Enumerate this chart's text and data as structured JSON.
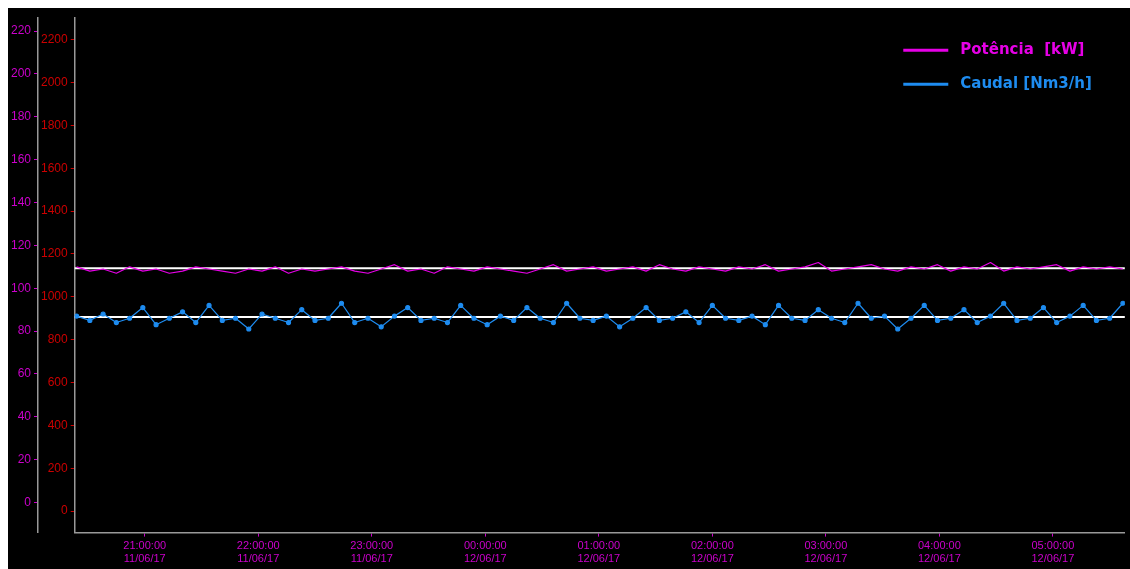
{
  "chart_data": {
    "type": "line",
    "x": [
      "--06-11T20:24",
      "--06-11T20:31",
      "--06-11T20:38",
      "--06-11T20:45",
      "--06-11T20:52",
      "--06-11T20:59",
      "--06-11T21:06",
      "--06-11T21:13",
      "--06-11T21:20",
      "--06-11T21:27",
      "--06-11T21:34",
      "--06-11T21:41",
      "--06-11T21:48",
      "--06-11T21:55",
      "--06-11T22:02",
      "--06-11T22:09",
      "--06-11T22:16",
      "--06-11T22:23",
      "--06-11T22:30",
      "--06-11T22:37",
      "--06-11T22:44",
      "--06-11T22:51",
      "--06-11T22:58",
      "--06-11T23:05",
      "--06-11T23:12",
      "--06-11T23:19",
      "--06-11T23:26",
      "--06-11T23:33",
      "--06-11T23:40",
      "--06-11T23:47",
      "--06-11T23:54",
      "--06-12T00:01",
      "--06-12T00:08",
      "--06-12T00:15",
      "--06-12T00:22",
      "--06-12T00:29",
      "--06-12T00:36",
      "--06-12T00:43",
      "--06-12T00:50",
      "--06-12T00:57",
      "--06-12T01:04",
      "--06-12T01:11",
      "--06-12T01:18",
      "--06-12T01:25",
      "--06-12T01:32",
      "--06-12T01:39",
      "--06-12T01:46",
      "--06-12T01:53",
      "--06-12T02:00",
      "--06-12T02:07",
      "--06-12T02:14",
      "--06-12T02:21",
      "--06-12T02:28",
      "--06-12T02:35",
      "--06-12T02:42",
      "--06-12T02:49",
      "--06-12T02:56",
      "--06-12T03:03",
      "--06-12T03:10",
      "--06-12T03:17",
      "--06-12T03:24",
      "--06-12T03:31",
      "--06-12T03:38",
      "--06-12T03:45",
      "--06-12T03:52",
      "--06-12T03:59",
      "--06-12T04:06",
      "--06-12T04:13",
      "--06-12T04:20",
      "--06-12T04:27",
      "--06-12T04:34",
      "--06-12T04:41",
      "--06-12T04:48",
      "--06-12T04:55",
      "--06-12T05:02",
      "--06-12T05:09",
      "--06-12T05:16",
      "--06-12T05:23",
      "--06-12T05:30",
      "--06-12T05:37"
    ],
    "series": [
      {
        "name": "Potência  [kW]",
        "color": "#e600e6",
        "marker": "none",
        "values": [
          110,
          108,
          109,
          107,
          110,
          108,
          109,
          107,
          108,
          110,
          109,
          108,
          107,
          109,
          108,
          110,
          107,
          109,
          108,
          109,
          110,
          108,
          107,
          109,
          111,
          108,
          109,
          107,
          110,
          109,
          108,
          110,
          109,
          108,
          107,
          109,
          111,
          108,
          109,
          110,
          108,
          109,
          110,
          108,
          111,
          109,
          108,
          110,
          109,
          108,
          110,
          109,
          111,
          108,
          109,
          110,
          112,
          108,
          109,
          110,
          111,
          109,
          108,
          110,
          109,
          111,
          108,
          110,
          109,
          112,
          108,
          110,
          109,
          110,
          111,
          108,
          110,
          109,
          110,
          109
        ]
      },
      {
        "name": "Caudal [Nm3/h]",
        "color": "#1e8cf0",
        "axis": "y2",
        "marker": "circle",
        "values": [
          910,
          890,
          920,
          880,
          900,
          950,
          870,
          900,
          930,
          880,
          960,
          890,
          900,
          850,
          920,
          900,
          880,
          940,
          890,
          900,
          970,
          880,
          900,
          860,
          910,
          950,
          890,
          900,
          880,
          960,
          900,
          870,
          910,
          890,
          950,
          900,
          880,
          970,
          900,
          890,
          910,
          860,
          900,
          950,
          890,
          900,
          930,
          880,
          960,
          900,
          890,
          910,
          870,
          960,
          900,
          890,
          940,
          900,
          880,
          970,
          900,
          910,
          850,
          900,
          960,
          890,
          900,
          940,
          880,
          910,
          970,
          890,
          900,
          950,
          880,
          910,
          960,
          890,
          900,
          970
        ]
      }
    ],
    "xlim": [
      "--06-11T20:23",
      "--06-12T05:38"
    ],
    "xticks": [
      {
        "value": "--06-11T21:00",
        "label": "21:00:00 11/06/17"
      },
      {
        "value": "--06-11T22:00",
        "label": "22:00:00 11/06/17"
      },
      {
        "value": "--06-11T23:00",
        "label": "23:00:00 11/06/17"
      },
      {
        "value": "--06-12T00:00",
        "label": "00:00:00 12/06/17"
      },
      {
        "value": "--06-12T01:00",
        "label": "01:00:00 12/06/17"
      },
      {
        "value": "--06-12T02:00",
        "label": "02:00:00 12/06/17"
      },
      {
        "value": "--06-12T03:00",
        "label": "03:00:00 12/06/17"
      },
      {
        "value": "--06-12T04:00",
        "label": "04:00:00 12/06/17"
      },
      {
        "value": "--06-12T05:00",
        "label": "05:00:00 12/06/17"
      }
    ],
    "ylim": [
      -14,
      226
    ],
    "yticks": [
      0,
      20,
      40,
      60,
      80,
      100,
      120,
      140,
      160,
      180,
      200,
      220
    ],
    "y2lim": [
      -100,
      2300
    ],
    "y2ticks": [
      0,
      200,
      400,
      600,
      800,
      1000,
      1200,
      1400,
      1600,
      1800,
      2000,
      2200
    ],
    "ref_lines": [
      {
        "axis": "y",
        "value": 109.3,
        "color": "#ffffff"
      },
      {
        "axis": "y2",
        "value": 906,
        "color": "#ffffff"
      }
    ],
    "grid": false,
    "legend": "top right",
    "line_style": "solid"
  }
}
